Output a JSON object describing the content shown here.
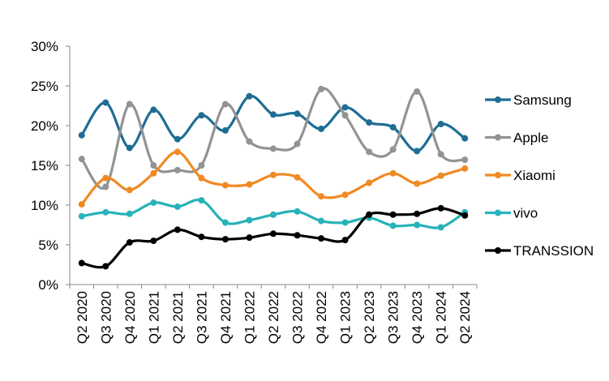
{
  "chart_data": {
    "type": "line",
    "smooth": true,
    "title": "",
    "xlabel": "",
    "ylabel": "",
    "ylim": [
      0,
      30
    ],
    "y_ticks": [
      "0%",
      "5%",
      "10%",
      "15%",
      "20%",
      "25%",
      "30%"
    ],
    "y_unit": "%",
    "grid": false,
    "legend_position": "right",
    "categories": [
      "Q2 2020",
      "Q3 2020",
      "Q4 2020",
      "Q1 2021",
      "Q2 2021",
      "Q3 2021",
      "Q4 2021",
      "Q1 2022",
      "Q2 2022",
      "Q3 2022",
      "Q4 2022",
      "Q1 2023",
      "Q2 2023",
      "Q3 2023",
      "Q4 2023",
      "Q1 2024",
      "Q2 2024"
    ],
    "series": [
      {
        "name": "Samsung",
        "color": "#1f6d94",
        "values": [
          18.8,
          22.9,
          17.2,
          22.0,
          18.3,
          21.3,
          19.4,
          23.7,
          21.4,
          21.5,
          19.6,
          22.3,
          20.4,
          19.8,
          16.8,
          20.2,
          18.4
        ]
      },
      {
        "name": "Apple",
        "color": "#939393",
        "values": [
          15.8,
          12.3,
          22.7,
          15.0,
          14.4,
          15.0,
          22.7,
          18.0,
          17.1,
          17.7,
          24.6,
          21.3,
          16.7,
          17.0,
          24.3,
          16.4,
          15.7
        ]
      },
      {
        "name": "Xiaomi",
        "color": "#f08a24",
        "values": [
          10.1,
          13.4,
          11.9,
          14.0,
          16.7,
          13.4,
          12.5,
          12.6,
          13.8,
          13.5,
          11.1,
          11.3,
          12.8,
          14.0,
          12.7,
          13.7,
          14.6
        ]
      },
      {
        "name": "vivo",
        "color": "#27b3b8",
        "values": [
          8.6,
          9.1,
          8.9,
          10.3,
          9.8,
          10.6,
          7.8,
          8.1,
          8.8,
          9.2,
          8.0,
          7.8,
          8.4,
          7.4,
          7.5,
          7.2,
          9.1
        ]
      },
      {
        "name": "TRANSSION",
        "color": "#000000",
        "values": [
          2.7,
          2.3,
          5.3,
          5.5,
          6.9,
          6.0,
          5.7,
          5.9,
          6.4,
          6.2,
          5.8,
          5.6,
          8.8,
          8.8,
          8.9,
          9.6,
          8.7
        ]
      }
    ]
  }
}
